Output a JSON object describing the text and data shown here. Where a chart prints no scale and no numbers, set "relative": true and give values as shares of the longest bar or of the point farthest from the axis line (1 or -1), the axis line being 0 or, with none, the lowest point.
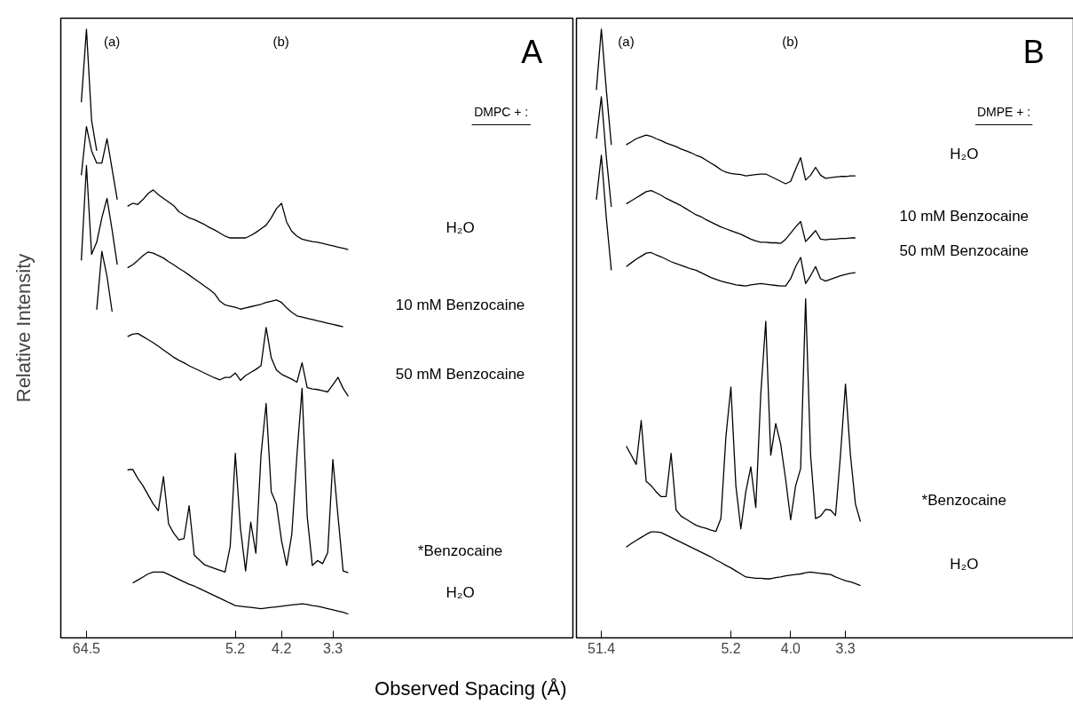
{
  "chart_data": [
    {
      "type": "line",
      "relative": true,
      "ylabel": "Relative Intensity",
      "xlabel": "Observed  Spacing (Å)",
      "categories": [
        null,
        null,
        null,
        null,
        null,
        "64.5",
        null,
        null,
        null,
        null,
        null,
        null,
        null,
        null,
        null,
        null,
        null,
        null,
        null,
        null,
        null,
        null,
        null,
        null,
        null,
        null,
        null,
        null,
        null,
        null,
        null,
        null,
        null,
        null,
        "5.2",
        null,
        null,
        null,
        null,
        null,
        null,
        null,
        null,
        "4.2",
        null,
        null,
        null,
        null,
        null,
        null,
        null,
        null,
        null,
        "3.3",
        null,
        null,
        null,
        null
      ],
      "annotations": [
        "(a)",
        "(b)",
        "A",
        "DMPC + :"
      ],
      "series": [
        {
          "color": "#000000",
          "values": [
            null,
            null,
            null,
            null,
            0.88,
            1.0,
            0.85,
            0.8,
            null,
            null,
            null,
            null,
            null,
            null,
            null,
            null,
            null,
            null,
            null,
            null,
            null,
            null,
            null,
            null,
            null,
            null,
            null,
            null,
            null,
            null,
            null,
            null,
            null,
            null,
            null,
            null,
            null,
            null,
            null,
            null,
            null,
            null,
            null,
            null,
            null,
            null,
            null,
            null,
            null,
            null,
            null,
            null,
            null,
            null,
            null,
            null,
            null,
            null
          ]
        },
        {
          "name": "H₂O",
          "color": "#000000",
          "values": [
            null,
            null,
            null,
            null,
            0.76,
            0.84,
            0.8,
            0.78,
            0.78,
            0.82,
            0.77,
            0.72,
            null,
            0.709,
            0.714,
            0.712,
            0.72,
            0.73,
            0.736,
            0.728,
            0.722,
            0.716,
            0.71,
            0.7,
            0.695,
            0.69,
            0.687,
            0.683,
            0.679,
            0.674,
            0.67,
            0.665,
            0.66,
            0.657,
            0.657,
            0.657,
            0.657,
            0.661,
            0.666,
            0.672,
            0.678,
            0.69,
            0.705,
            0.714,
            0.683,
            0.668,
            0.66,
            0.655,
            0.653,
            0.651,
            0.65,
            0.648,
            0.646,
            0.644,
            0.642,
            0.64,
            0.638,
            null
          ]
        },
        {
          "name": "10 mM Benzocaine",
          "color": "#000000",
          "values": [
            null,
            null,
            null,
            null,
            0.62,
            0.776,
            0.63,
            0.65,
            0.69,
            0.722,
            0.67,
            0.613,
            null,
            0.608,
            0.613,
            0.62,
            0.628,
            0.634,
            0.632,
            0.628,
            0.624,
            0.618,
            0.613,
            0.607,
            0.602,
            0.596,
            0.59,
            0.584,
            0.578,
            0.572,
            0.565,
            0.553,
            0.547,
            0.545,
            0.543,
            0.54,
            0.542,
            0.544,
            0.546,
            0.548,
            0.551,
            0.553,
            0.555,
            0.551,
            0.542,
            0.535,
            0.529,
            0.527,
            0.525,
            0.523,
            0.521,
            0.519,
            0.517,
            0.515,
            0.513,
            0.511,
            null,
            null
          ]
        },
        {
          "name": "50 mM Benzocaine",
          "color": "#000000",
          "values": [
            null,
            null,
            null,
            null,
            null,
            null,
            null,
            0.539,
            0.635,
            0.594,
            0.536,
            null,
            null,
            0.495,
            0.499,
            0.5,
            0.495,
            0.49,
            0.485,
            0.479,
            0.473,
            0.467,
            0.461,
            0.456,
            0.452,
            0.447,
            0.443,
            0.439,
            0.435,
            0.431,
            0.427,
            0.424,
            0.428,
            0.428,
            0.435,
            0.423,
            0.431,
            0.436,
            0.441,
            0.447,
            0.51,
            0.46,
            0.44,
            0.433,
            0.429,
            0.425,
            0.42,
            0.452,
            0.411,
            0.409,
            0.408,
            0.406,
            0.404,
            0.416,
            0.428,
            0.41,
            0.397,
            null
          ]
        },
        {
          "name": "*Benzocaine",
          "color": "#000000",
          "values": [
            null,
            null,
            null,
            null,
            null,
            null,
            null,
            null,
            null,
            null,
            null,
            null,
            null,
            0.276,
            0.277,
            0.262,
            0.25,
            0.235,
            0.22,
            0.209,
            0.265,
            0.187,
            0.172,
            0.161,
            0.163,
            0.217,
            0.136,
            0.128,
            0.12,
            0.117,
            0.114,
            0.111,
            0.108,
            0.15,
            0.303,
            0.18,
            0.11,
            0.19,
            0.139,
            0.3,
            0.385,
            0.24,
            0.22,
            0.16,
            0.119,
            0.17,
            0.3,
            0.41,
            0.2,
            0.119,
            0.127,
            0.122,
            0.14,
            0.293,
            0.2,
            0.11,
            0.107,
            null
          ]
        },
        {
          "name": "H₂O",
          "color": "#000000",
          "values": [
            null,
            null,
            null,
            null,
            null,
            null,
            null,
            null,
            null,
            null,
            null,
            null,
            null,
            null,
            0.09,
            0.095,
            0.1,
            0.105,
            0.108,
            0.108,
            0.108,
            0.104,
            0.1,
            0.096,
            0.092,
            0.088,
            0.085,
            0.081,
            0.077,
            0.073,
            0.069,
            0.065,
            0.061,
            0.057,
            0.053,
            0.052,
            0.051,
            0.05,
            0.049,
            0.048,
            0.049,
            0.05,
            0.051,
            0.052,
            0.053,
            0.054,
            0.055,
            0.056,
            0.055,
            0.053,
            0.052,
            0.05,
            0.048,
            0.046,
            0.044,
            0.042,
            0.039,
            null
          ]
        }
      ]
    },
    {
      "type": "line",
      "relative": true,
      "categories": [
        null,
        null,
        null,
        null,
        null,
        "51.4",
        null,
        null,
        null,
        null,
        null,
        null,
        null,
        null,
        null,
        null,
        null,
        null,
        null,
        null,
        null,
        null,
        null,
        null,
        null,
        null,
        null,
        null,
        null,
        null,
        null,
        "5.2",
        null,
        null,
        null,
        null,
        null,
        null,
        null,
        null,
        null,
        null,
        null,
        "4.0",
        null,
        null,
        null,
        null,
        null,
        null,
        null,
        null,
        null,
        null,
        "3.3",
        null,
        null,
        null
      ],
      "annotations": [
        "(a)",
        "(b)",
        "B",
        "DMPE + :"
      ],
      "series": [
        {
          "name": "H₂O",
          "color": "#000000",
          "values": [
            null,
            null,
            null,
            null,
            0.9,
            1.0,
            0.9,
            0.81,
            null,
            null,
            0.81,
            0.815,
            0.82,
            0.823,
            0.826,
            0.824,
            0.82,
            0.817,
            0.813,
            0.81,
            0.807,
            0.803,
            0.8,
            0.797,
            0.793,
            0.79,
            0.785,
            0.78,
            0.775,
            0.769,
            0.765,
            0.763,
            0.762,
            0.761,
            0.759,
            0.76,
            0.761,
            0.762,
            0.762,
            0.758,
            0.754,
            0.75,
            0.746,
            0.75,
            0.77,
            0.789,
            0.752,
            0.76,
            0.773,
            0.76,
            0.755,
            0.756,
            0.757,
            0.758,
            0.758,
            0.759,
            0.759,
            null
          ]
        },
        {
          "name": "10 mM Benzocaine",
          "color": "#000000",
          "values": [
            null,
            null,
            null,
            null,
            0.82,
            0.889,
            0.79,
            0.708,
            null,
            null,
            0.713,
            0.718,
            0.723,
            0.728,
            0.733,
            0.735,
            0.731,
            0.727,
            0.722,
            0.718,
            0.714,
            0.71,
            0.705,
            0.7,
            0.695,
            0.692,
            0.687,
            0.683,
            0.679,
            0.675,
            0.672,
            0.669,
            0.666,
            0.663,
            0.659,
            0.655,
            0.652,
            0.65,
            0.65,
            0.649,
            0.649,
            0.648,
            0.655,
            0.665,
            0.675,
            0.684,
            0.651,
            0.66,
            0.669,
            0.655,
            0.654,
            0.655,
            0.655,
            0.656,
            0.656,
            0.657,
            0.657,
            null
          ]
        },
        {
          "name": "50 mM Benzocaine",
          "color": "#000000",
          "values": [
            null,
            null,
            null,
            null,
            0.72,
            0.793,
            0.69,
            0.604,
            null,
            null,
            0.61,
            0.616,
            0.622,
            0.627,
            0.632,
            0.633,
            0.629,
            0.626,
            0.622,
            0.618,
            0.615,
            0.612,
            0.609,
            0.606,
            0.604,
            0.6,
            0.596,
            0.592,
            0.589,
            0.586,
            0.584,
            0.582,
            0.58,
            0.579,
            0.578,
            0.58,
            0.581,
            0.582,
            0.581,
            0.58,
            0.579,
            0.578,
            0.578,
            0.59,
            0.61,
            0.625,
            0.582,
            0.595,
            0.61,
            0.59,
            0.586,
            0.589,
            0.592,
            0.595,
            0.597,
            0.599,
            0.6,
            null
          ]
        },
        {
          "name": "*Benzocaine",
          "color": "#000000",
          "values": [
            null,
            null,
            null,
            null,
            null,
            null,
            null,
            null,
            null,
            null,
            0.315,
            0.3,
            0.285,
            0.357,
            0.257,
            0.25,
            0.24,
            0.232,
            0.232,
            0.303,
            0.21,
            0.2,
            0.195,
            0.19,
            0.185,
            0.182,
            0.18,
            0.177,
            0.175,
            0.196,
            0.33,
            0.412,
            0.25,
            0.179,
            0.24,
            0.281,
            0.214,
            0.4,
            0.52,
            0.3,
            0.352,
            0.318,
            0.26,
            0.194,
            0.25,
            0.278,
            0.557,
            0.3,
            0.196,
            0.2,
            0.211,
            0.21,
            0.201,
            0.3,
            0.417,
            0.3,
            0.22,
            0.191
          ]
        },
        {
          "name": "H₂O",
          "color": "#000000",
          "values": [
            null,
            null,
            null,
            null,
            null,
            null,
            null,
            null,
            null,
            null,
            0.149,
            0.155,
            0.16,
            0.165,
            0.17,
            0.174,
            0.174,
            0.173,
            0.169,
            0.165,
            0.161,
            0.157,
            0.153,
            0.149,
            0.145,
            0.141,
            0.137,
            0.133,
            0.128,
            0.124,
            0.119,
            0.115,
            0.11,
            0.105,
            0.1,
            0.099,
            0.098,
            0.098,
            0.097,
            0.097,
            0.099,
            0.1,
            0.102,
            0.103,
            0.104,
            0.105,
            0.107,
            0.108,
            0.107,
            0.106,
            0.105,
            0.104,
            0.1,
            0.097,
            0.094,
            0.092,
            0.089,
            0.086
          ]
        }
      ]
    }
  ]
}
